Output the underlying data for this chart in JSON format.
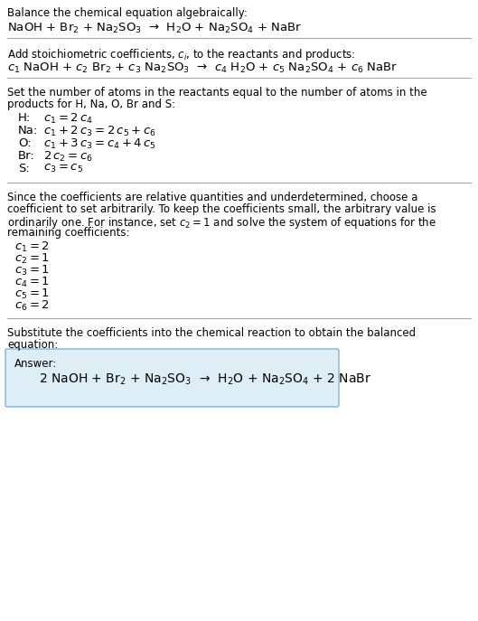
{
  "bg_color": "#ffffff",
  "text_color": "#000000",
  "answer_box_color": "#ddeef6",
  "answer_box_edge": "#7ab8d4",
  "section1_title": "Balance the chemical equation algebraically:",
  "section1_eq": "NaOH + Br$_2$ + Na$_2$SO$_3$  →  H$_2$O + Na$_2$SO$_4$ + NaBr",
  "section2_title": "Add stoichiometric coefficients, $c_i$, to the reactants and products:",
  "section2_eq": "$c_1$ NaOH + $c_2$ Br$_2$ + $c_3$ Na$_2$SO$_3$  →  $c_4$ H$_2$O + $c_5$ Na$_2$SO$_4$ + $c_6$ NaBr",
  "section3_title_l1": "Set the number of atoms in the reactants equal to the number of atoms in the",
  "section3_title_l2": "products for H, Na, O, Br and S:",
  "section3_equations": [
    [
      "H:",
      "$c_1 = 2\\,c_4$"
    ],
    [
      "Na:",
      "$c_1 + 2\\,c_3 = 2\\,c_5 + c_6$"
    ],
    [
      "O:",
      "$c_1 + 3\\,c_3 = c_4 + 4\\,c_5$"
    ],
    [
      "Br:",
      "$2\\,c_2 = c_6$"
    ],
    [
      "S:",
      "$c_3 = c_5$"
    ]
  ],
  "section4_l1": "Since the coefficients are relative quantities and underdetermined, choose a",
  "section4_l2": "coefficient to set arbitrarily. To keep the coefficients small, the arbitrary value is",
  "section4_l3": "ordinarily one. For instance, set $c_2 = 1$ and solve the system of equations for the",
  "section4_l4": "remaining coefficients:",
  "section4_solutions": [
    "$c_1 = 2$",
    "$c_2 = 1$",
    "$c_3 = 1$",
    "$c_4 = 1$",
    "$c_5 = 1$",
    "$c_6 = 2$"
  ],
  "section5_l1": "Substitute the coefficients into the chemical reaction to obtain the balanced",
  "section5_l2": "equation:",
  "answer_label": "Answer:",
  "answer_eq": "2 NaOH + Br$_2$ + Na$_2$SO$_3$  →  H$_2$O + Na$_2$SO$_4$ + 2 NaBr",
  "fs": 8.5,
  "fs_eq": 9.5,
  "fs_ans": 10.0
}
